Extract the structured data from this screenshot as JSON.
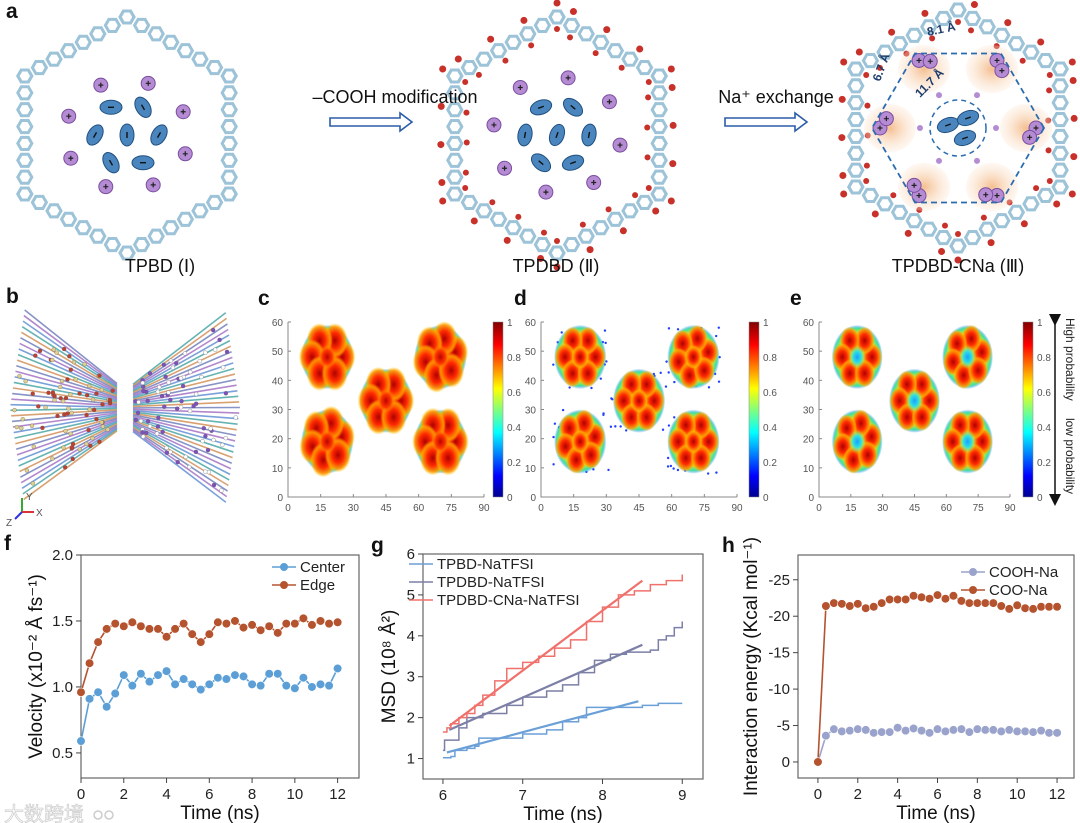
{
  "panel_labels": {
    "a": "a",
    "b": "b",
    "c": "c",
    "d": "d",
    "e": "e",
    "f": "f",
    "g": "g",
    "h": "h"
  },
  "panel_a": {
    "structures": [
      {
        "label": "TPBD (Ⅰ)"
      },
      {
        "label": "TPDBD (Ⅱ)"
      },
      {
        "label": "TPDBD-CNa (Ⅲ)"
      }
    ],
    "steps": [
      "–COOH modification",
      "Na⁺ exchange"
    ],
    "distances": [
      "8.1 Å",
      "6.7 Å",
      "11.7 Å"
    ],
    "anion_sign": "−",
    "cation_sign": "+",
    "colors": {
      "framework": "#9cc3d8",
      "oxygen": "#c8302a",
      "anion": "#4a86bd",
      "cation": "#b58bd3",
      "pore": "#f4c39a",
      "dash": "#2b6cb0"
    }
  },
  "panel_b": {
    "axes_triad": [
      "Y",
      "X",
      "Z"
    ]
  },
  "heatmaps": {
    "panels": [
      "c",
      "d",
      "e"
    ],
    "x_ticks": [
      "0",
      "15",
      "30",
      "45",
      "60",
      "75",
      "90"
    ],
    "y_ticks": [
      "0",
      "10",
      "20",
      "30",
      "40",
      "50",
      "60"
    ],
    "colorbar_ticks": [
      "0",
      "0.2",
      "0.4",
      "0.6",
      "0.8",
      "1"
    ],
    "high_label": "High probability",
    "low_label": "low probability"
  },
  "chart_data": [
    {
      "id": "f",
      "type": "line",
      "title": "",
      "xlabel": "Time (ns)",
      "ylabel": "Velocity (x10⁻² Å fs⁻¹)",
      "xlim": [
        0,
        13
      ],
      "ylim": [
        0.31,
        2.0
      ],
      "xticks": [
        0,
        2,
        4,
        6,
        8,
        10,
        12
      ],
      "yticks": [
        0.5,
        1.0,
        1.5,
        2.0
      ],
      "ytick_labels": [
        "0.5",
        "1.0",
        "1.5",
        "2.0"
      ],
      "legend": "top-right",
      "markers": true,
      "x": [
        0,
        0.4,
        0.8,
        1.2,
        1.6,
        2.0,
        2.4,
        2.8,
        3.2,
        3.6,
        4.0,
        4.4,
        4.8,
        5.2,
        5.6,
        6.0,
        6.4,
        6.8,
        7.2,
        7.6,
        8.0,
        8.4,
        8.8,
        9.2,
        9.6,
        10.0,
        10.4,
        10.8,
        11.2,
        11.6,
        12.0
      ],
      "series": [
        {
          "name": "Center",
          "color": "#5b9fd6",
          "values": [
            0.59,
            0.91,
            0.96,
            0.85,
            0.95,
            1.09,
            1.01,
            1.1,
            1.04,
            1.09,
            1.12,
            1.02,
            1.06,
            1.02,
            0.98,
            1.02,
            1.07,
            1.06,
            1.09,
            1.08,
            1.02,
            1.01,
            1.1,
            1.1,
            1.01,
            0.99,
            1.07,
            1.0,
            1.02,
            1.01,
            1.14
          ]
        },
        {
          "name": "Edge",
          "color": "#b5532f",
          "values": [
            0.96,
            1.18,
            1.34,
            1.44,
            1.48,
            1.46,
            1.49,
            1.46,
            1.44,
            1.44,
            1.38,
            1.44,
            1.48,
            1.4,
            1.34,
            1.4,
            1.49,
            1.48,
            1.5,
            1.45,
            1.47,
            1.43,
            1.46,
            1.41,
            1.48,
            1.48,
            1.52,
            1.47,
            1.5,
            1.48,
            1.49
          ]
        }
      ]
    },
    {
      "id": "g",
      "type": "line",
      "title": "",
      "xlabel": "Time (ns)",
      "ylabel": "MSD (10⁸ Å²)",
      "xlim": [
        5.75,
        9.26
      ],
      "ylim": [
        0.5,
        6
      ],
      "xticks": [
        6,
        7,
        8,
        9
      ],
      "yticks": [
        1,
        2,
        3,
        4,
        5,
        6
      ],
      "ytick_labels": [
        "1",
        "2",
        "3",
        "4",
        "5",
        "6"
      ],
      "legend": "top-left",
      "markers": false,
      "series": [
        {
          "name": "TPBD-NaTFSI",
          "color": "#6a9fd8",
          "points": [
            [
              6,
              1.02
            ],
            [
              6.1,
              1.05
            ],
            [
              6.15,
              1.2
            ],
            [
              6.3,
              1.25
            ],
            [
              6.4,
              1.3
            ],
            [
              6.45,
              1.5
            ],
            [
              6.9,
              1.5
            ],
            [
              7.0,
              1.6
            ],
            [
              7.3,
              1.7
            ],
            [
              7.5,
              1.9
            ],
            [
              7.7,
              2.0
            ],
            [
              7.8,
              2.25
            ],
            [
              8.2,
              2.25
            ],
            [
              8.5,
              2.3
            ],
            [
              8.65,
              2.3
            ],
            [
              8.7,
              2.35
            ],
            [
              9,
              2.35
            ]
          ],
          "fit": [
            [
              6.05,
              1.15
            ],
            [
              8.45,
              2.4
            ]
          ]
        },
        {
          "name": "TPDBD-NaTFSI",
          "color": "#7c7fa6",
          "points": [
            [
              6,
              1.2
            ],
            [
              6.02,
              1.45
            ],
            [
              6.1,
              1.45
            ],
            [
              6.2,
              1.75
            ],
            [
              6.3,
              2.0
            ],
            [
              6.5,
              2.1
            ],
            [
              6.8,
              2.3
            ],
            [
              7.0,
              2.5
            ],
            [
              7.3,
              2.65
            ],
            [
              7.5,
              2.8
            ],
            [
              7.7,
              3.1
            ],
            [
              7.9,
              3.4
            ],
            [
              8.1,
              3.55
            ],
            [
              8.3,
              3.6
            ],
            [
              8.6,
              3.65
            ],
            [
              8.7,
              3.9
            ],
            [
              8.8,
              4.0
            ],
            [
              8.9,
              4.2
            ],
            [
              9,
              4.35
            ]
          ],
          "fit": [
            [
              6.08,
              1.7
            ],
            [
              8.5,
              3.78
            ]
          ]
        },
        {
          "name": "TPDBD-CNa-NaTFSI",
          "color": "#f0716c",
          "points": [
            [
              6,
              1.65
            ],
            [
              6.05,
              1.75
            ],
            [
              6.1,
              1.85
            ],
            [
              6.2,
              2.0
            ],
            [
              6.3,
              2.1
            ],
            [
              6.4,
              2.3
            ],
            [
              6.5,
              2.55
            ],
            [
              6.65,
              2.9
            ],
            [
              6.8,
              3.2
            ],
            [
              7.0,
              3.35
            ],
            [
              7.2,
              3.5
            ],
            [
              7.4,
              3.7
            ],
            [
              7.6,
              3.9
            ],
            [
              7.8,
              4.35
            ],
            [
              8.0,
              4.7
            ],
            [
              8.2,
              5.0
            ],
            [
              8.4,
              5.1
            ],
            [
              8.6,
              5.25
            ],
            [
              8.8,
              5.35
            ],
            [
              9.0,
              5.5
            ]
          ],
          "fit": [
            [
              6.08,
              1.8
            ],
            [
              8.5,
              5.35
            ]
          ]
        }
      ]
    },
    {
      "id": "h",
      "type": "line",
      "title": "",
      "xlabel": "Time (ns)",
      "ylabel": "Interaction energy (Kcal mol⁻¹)",
      "xlim": [
        -1,
        12.85
      ],
      "ylim": [
        2.2,
        -28.4
      ],
      "xticks": [
        0,
        2,
        4,
        6,
        8,
        10,
        12
      ],
      "yticks": [
        0,
        -5,
        -10,
        -15,
        -20,
        -25
      ],
      "ytick_labels": [
        "0",
        "-5",
        "-10",
        "-15",
        "-20",
        "-25"
      ],
      "legend": "top-right",
      "markers": true,
      "x": [
        0,
        0.4,
        0.8,
        1.2,
        1.6,
        2.0,
        2.4,
        2.8,
        3.2,
        3.6,
        4.0,
        4.4,
        4.8,
        5.2,
        5.6,
        6.0,
        6.4,
        6.8,
        7.2,
        7.6,
        8.0,
        8.4,
        8.8,
        9.2,
        9.6,
        10.0,
        10.4,
        10.8,
        11.2,
        11.6,
        12.0
      ],
      "series": [
        {
          "name": "COOH-Na",
          "color": "#9aa3cc",
          "values": [
            0,
            -3.6,
            -4.5,
            -4.2,
            -4.3,
            -4.5,
            -4.4,
            -4.0,
            -4.1,
            -4.1,
            -4.7,
            -4.3,
            -4.6,
            -4.3,
            -4.0,
            -4.5,
            -4.2,
            -4.4,
            -4.5,
            -4.1,
            -4.5,
            -4.4,
            -4.4,
            -4.2,
            -4.4,
            -4.2,
            -4.2,
            -4.1,
            -4.3,
            -4.0,
            -4.0
          ]
        },
        {
          "name": "COO-Na",
          "color": "#b5532f",
          "values": [
            0,
            -21.4,
            -21.8,
            -21.7,
            -21.4,
            -21.7,
            -21.1,
            -21.3,
            -21.8,
            -22.3,
            -22.3,
            -22.3,
            -22.8,
            -22.6,
            -22.4,
            -22.9,
            -22.4,
            -22.8,
            -22.1,
            -21.8,
            -21.8,
            -21.8,
            -21.8,
            -21.4,
            -21.0,
            -21.5,
            -21.1,
            -21.0,
            -21.3,
            -21.3,
            -21.3
          ]
        }
      ]
    }
  ],
  "watermark": "大数跨境"
}
